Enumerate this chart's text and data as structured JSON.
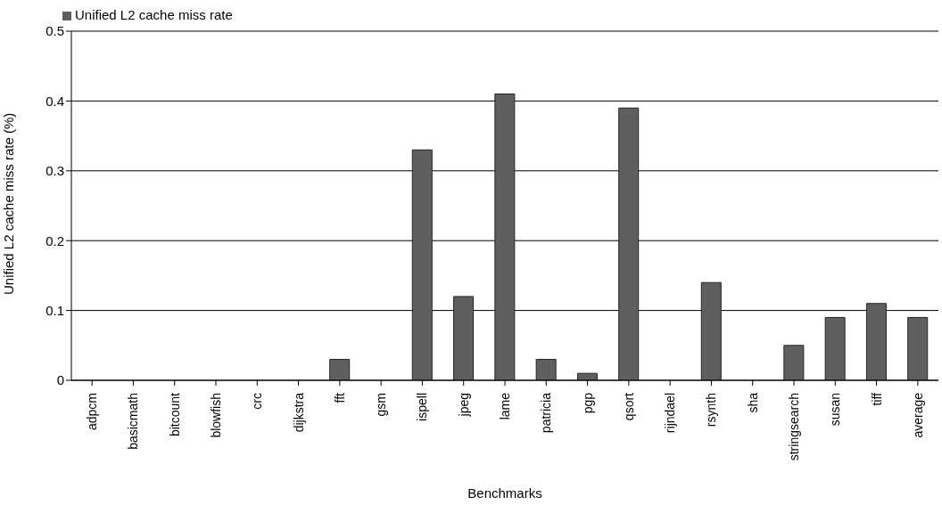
{
  "chart_data": {
    "type": "bar",
    "xlabel": "Benchmarks",
    "ylabel": "Unified L2 cache miss rate (%)",
    "categories": [
      "adpcm",
      "basicmath",
      "bitcount",
      "blowfish",
      "crc",
      "dijkstra",
      "fft",
      "gsm",
      "ispell",
      "jpeg",
      "lame",
      "patricia",
      "pgp",
      "qsort",
      "rijndael",
      "rsynth",
      "sha",
      "stringsearch",
      "susan",
      "tiff",
      "average"
    ],
    "series": [
      {
        "name": "Unified L2 cache miss rate",
        "color": "#5f5f5f",
        "values": [
          0,
          0,
          0,
          0,
          0,
          0,
          0.03,
          0,
          0.33,
          0.12,
          0.41,
          0.03,
          0.01,
          0.39,
          0,
          0.14,
          0,
          0.05,
          0.09,
          0.11,
          0.09
        ]
      }
    ],
    "ylim": [
      0,
      0.5
    ],
    "yticks": [
      0,
      0.1,
      0.2,
      0.3,
      0.4,
      0.5
    ],
    "grid": "y",
    "legend": "top left"
  }
}
